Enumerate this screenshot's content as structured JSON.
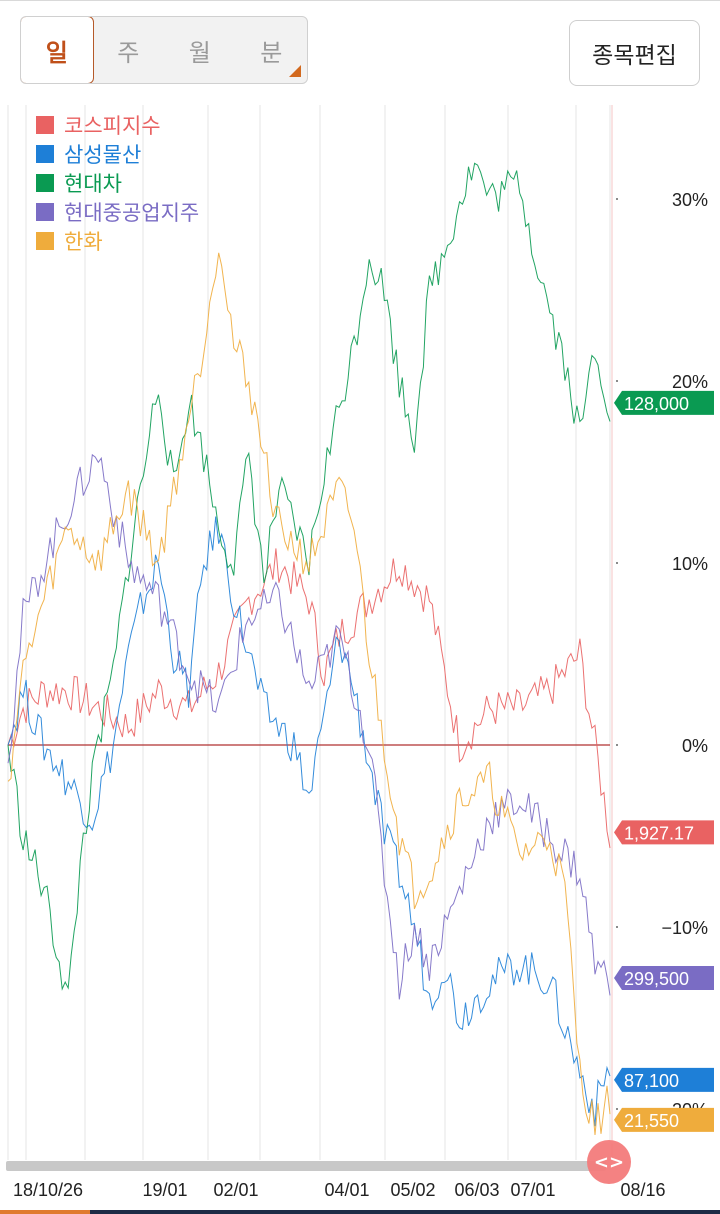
{
  "period_tabs": [
    {
      "label": "일",
      "active": true
    },
    {
      "label": "주",
      "active": false
    },
    {
      "label": "월",
      "active": false
    },
    {
      "label": "분",
      "active": false
    }
  ],
  "edit_button": "종목편집",
  "scroll_handle_icon": "code-brackets-icon",
  "chart_data": {
    "type": "line",
    "x_ticks": [
      "18/10/26",
      "19/01",
      "02/01",
      "04/01",
      "05/02",
      "06/03",
      "07/01",
      "08/16"
    ],
    "y_ticks": [
      "30%",
      "20%",
      "10%",
      "0%",
      "−10%",
      "−20%"
    ],
    "ylim": [
      -21.5,
      31.5
    ],
    "baseline": 0,
    "x_count": 200,
    "series": [
      {
        "name": "코스피지수",
        "color": "#e96262",
        "last_label": "1,927.17",
        "points": [
          [
            0,
            0
          ],
          [
            5,
            2
          ],
          [
            12,
            3
          ],
          [
            20,
            3
          ],
          [
            30,
            2
          ],
          [
            40,
            1
          ],
          [
            50,
            3
          ],
          [
            60,
            2
          ],
          [
            70,
            4
          ],
          [
            75,
            6
          ],
          [
            80,
            8
          ],
          [
            90,
            10
          ],
          [
            100,
            8
          ],
          [
            105,
            4
          ],
          [
            110,
            6
          ],
          [
            115,
            7
          ],
          [
            120,
            8
          ],
          [
            130,
            10
          ],
          [
            140,
            8
          ],
          [
            150,
            0
          ],
          [
            160,
            2
          ],
          [
            170,
            2
          ],
          [
            180,
            3
          ],
          [
            190,
            5
          ],
          [
            195,
            0
          ],
          [
            200,
            -5
          ]
        ],
        "last": -4.8
      },
      {
        "name": "삼성물산",
        "color": "#1e7fd7",
        "last_label": "87,100",
        "points": [
          [
            0,
            0
          ],
          [
            5,
            3
          ],
          [
            12,
            0
          ],
          [
            20,
            -2
          ],
          [
            28,
            -4
          ],
          [
            35,
            0
          ],
          [
            40,
            5
          ],
          [
            45,
            8
          ],
          [
            50,
            10
          ],
          [
            55,
            5
          ],
          [
            60,
            3
          ],
          [
            65,
            10
          ],
          [
            70,
            12
          ],
          [
            75,
            8
          ],
          [
            80,
            5
          ],
          [
            85,
            2
          ],
          [
            90,
            1
          ],
          [
            95,
            0
          ],
          [
            100,
            -3
          ],
          [
            110,
            6
          ],
          [
            115,
            3
          ],
          [
            120,
            -1
          ],
          [
            125,
            -5
          ],
          [
            130,
            -7
          ],
          [
            135,
            -10
          ],
          [
            140,
            -14
          ],
          [
            145,
            -12
          ],
          [
            150,
            -15
          ],
          [
            160,
            -13
          ],
          [
            170,
            -12
          ],
          [
            180,
            -13
          ],
          [
            190,
            -18
          ],
          [
            195,
            -20
          ],
          [
            200,
            -17.5
          ]
        ],
        "last": -18.4
      },
      {
        "name": "현대차",
        "color": "#0a9a52",
        "last_label": "128,000",
        "points": [
          [
            0,
            0
          ],
          [
            5,
            -5
          ],
          [
            12,
            -8
          ],
          [
            20,
            -14
          ],
          [
            25,
            -5
          ],
          [
            30,
            0
          ],
          [
            35,
            4
          ],
          [
            40,
            10
          ],
          [
            45,
            15
          ],
          [
            50,
            20
          ],
          [
            55,
            14
          ],
          [
            60,
            19
          ],
          [
            65,
            16
          ],
          [
            70,
            12
          ],
          [
            75,
            10
          ],
          [
            80,
            16
          ],
          [
            85,
            9
          ],
          [
            90,
            14
          ],
          [
            95,
            12
          ],
          [
            100,
            10
          ],
          [
            105,
            15
          ],
          [
            115,
            22
          ],
          [
            120,
            27
          ],
          [
            125,
            25
          ],
          [
            130,
            20
          ],
          [
            135,
            17
          ],
          [
            140,
            25
          ],
          [
            145,
            27
          ],
          [
            150,
            30
          ],
          [
            155,
            32
          ],
          [
            160,
            30
          ],
          [
            170,
            31
          ],
          [
            175,
            27
          ],
          [
            180,
            24
          ],
          [
            185,
            21
          ],
          [
            190,
            17
          ],
          [
            195,
            22
          ],
          [
            200,
            18.5
          ]
        ],
        "last": 18.8
      },
      {
        "name": "현대중공업지주",
        "color": "#7a6cc4",
        "last_label": "299,500",
        "points": [
          [
            0,
            -1
          ],
          [
            5,
            7
          ],
          [
            12,
            10
          ],
          [
            20,
            13
          ],
          [
            30,
            16
          ],
          [
            40,
            10
          ],
          [
            50,
            8
          ],
          [
            60,
            4
          ],
          [
            70,
            2
          ],
          [
            80,
            7
          ],
          [
            90,
            8
          ],
          [
            100,
            3
          ],
          [
            110,
            6
          ],
          [
            120,
            0
          ],
          [
            125,
            -7
          ],
          [
            130,
            -13
          ],
          [
            135,
            -10
          ],
          [
            140,
            -12
          ],
          [
            150,
            -8
          ],
          [
            160,
            -4
          ],
          [
            170,
            -3
          ],
          [
            180,
            -5
          ],
          [
            190,
            -7
          ],
          [
            195,
            -12
          ],
          [
            200,
            -13
          ]
        ],
        "last": -12.8
      },
      {
        "name": "한화",
        "color": "#efac3c",
        "last_label": "21,550",
        "points": [
          [
            0,
            -2
          ],
          [
            5,
            4
          ],
          [
            12,
            8
          ],
          [
            20,
            12
          ],
          [
            30,
            10
          ],
          [
            40,
            14
          ],
          [
            50,
            10
          ],
          [
            60,
            18
          ],
          [
            65,
            22
          ],
          [
            70,
            28
          ],
          [
            75,
            22
          ],
          [
            80,
            20
          ],
          [
            85,
            16
          ],
          [
            90,
            12
          ],
          [
            100,
            10
          ],
          [
            110,
            14
          ],
          [
            115,
            12
          ],
          [
            120,
            5
          ],
          [
            125,
            0
          ],
          [
            130,
            -5
          ],
          [
            135,
            -8
          ],
          [
            140,
            -7
          ],
          [
            150,
            -3
          ],
          [
            160,
            -2
          ],
          [
            170,
            -6
          ],
          [
            180,
            -5
          ],
          [
            185,
            -8
          ],
          [
            190,
            -18
          ],
          [
            195,
            -21
          ],
          [
            200,
            -19.5
          ]
        ],
        "last": -20.6
      }
    ]
  }
}
